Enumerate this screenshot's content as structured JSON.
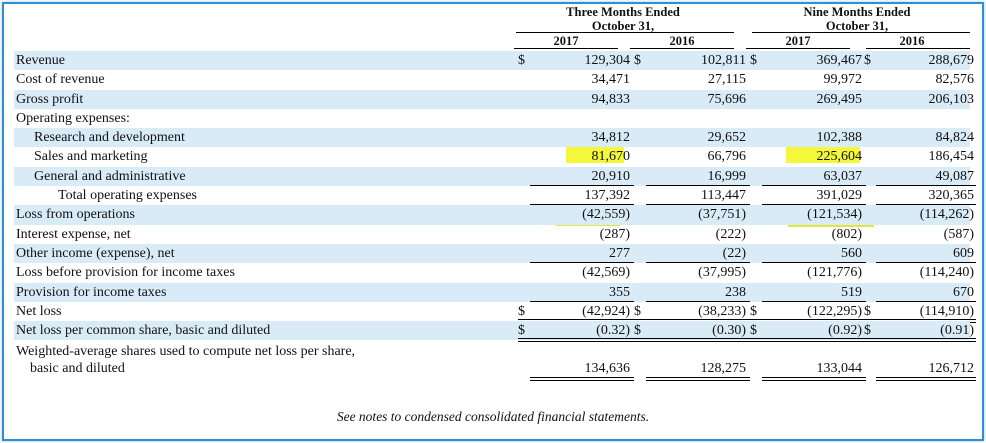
{
  "header": {
    "group1_title": "Three Months Ended",
    "group1_sub": "October 31,",
    "group2_title": "Nine Months Ended",
    "group2_sub": "October 31,",
    "years": [
      "2017",
      "2016",
      "2017",
      "2016"
    ]
  },
  "currency_symbol": "$",
  "rows": [
    {
      "label": "Revenue",
      "values": [
        "129,304",
        "102,811",
        "369,467",
        "288,679"
      ]
    },
    {
      "label": "Cost of revenue",
      "values": [
        "34,471",
        "27,115",
        "99,972",
        "82,576"
      ]
    },
    {
      "label": "Gross profit",
      "values": [
        "94,833",
        "75,696",
        "269,495",
        "206,103"
      ]
    },
    {
      "label": "Operating expenses:",
      "values": [
        "",
        "",
        "",
        ""
      ]
    },
    {
      "label": "Research and development",
      "values": [
        "34,812",
        "29,652",
        "102,388",
        "84,824"
      ]
    },
    {
      "label": "Sales and marketing",
      "values": [
        "81,670",
        "66,796",
        "225,604",
        "186,454"
      ]
    },
    {
      "label": "General and administrative",
      "values": [
        "20,910",
        "16,999",
        "63,037",
        "49,087"
      ]
    },
    {
      "label": "Total operating expenses",
      "values": [
        "137,392",
        "113,447",
        "391,029",
        "320,365"
      ]
    },
    {
      "label": "Loss from operations",
      "values": [
        "(42,559)",
        "(37,751)",
        "(121,534)",
        "(114,262)"
      ]
    },
    {
      "label": "Interest expense, net",
      "values": [
        "(287)",
        "(222)",
        "(802)",
        "(587)"
      ]
    },
    {
      "label": "Other income (expense), net",
      "values": [
        "277",
        "(22)",
        "560",
        "609"
      ]
    },
    {
      "label": "Loss before provision for income taxes",
      "values": [
        "(42,569)",
        "(37,995)",
        "(121,776)",
        "(114,240)"
      ]
    },
    {
      "label": "Provision for income taxes",
      "values": [
        "355",
        "238",
        "519",
        "670"
      ]
    },
    {
      "label": "Net loss",
      "values": [
        "(42,924)",
        "(38,233)",
        "(122,295)",
        "(114,910)"
      ]
    },
    {
      "label": "Net loss per common share, basic and diluted",
      "values": [
        "(0.32)",
        "(0.30)",
        "(0.92)",
        "(0.91)"
      ]
    },
    {
      "label_line1": "Weighted-average shares used to compute net loss per share,",
      "label_line2": "basic and diluted",
      "values": [
        "134,636",
        "128,275",
        "133,044",
        "126,712"
      ]
    }
  ],
  "footnote": "See notes to condensed consolidated financial statements.",
  "colors": {
    "row_shade": "#d9ebf7",
    "highlight": "#f4f73a",
    "frame": "#2e8fd6"
  }
}
